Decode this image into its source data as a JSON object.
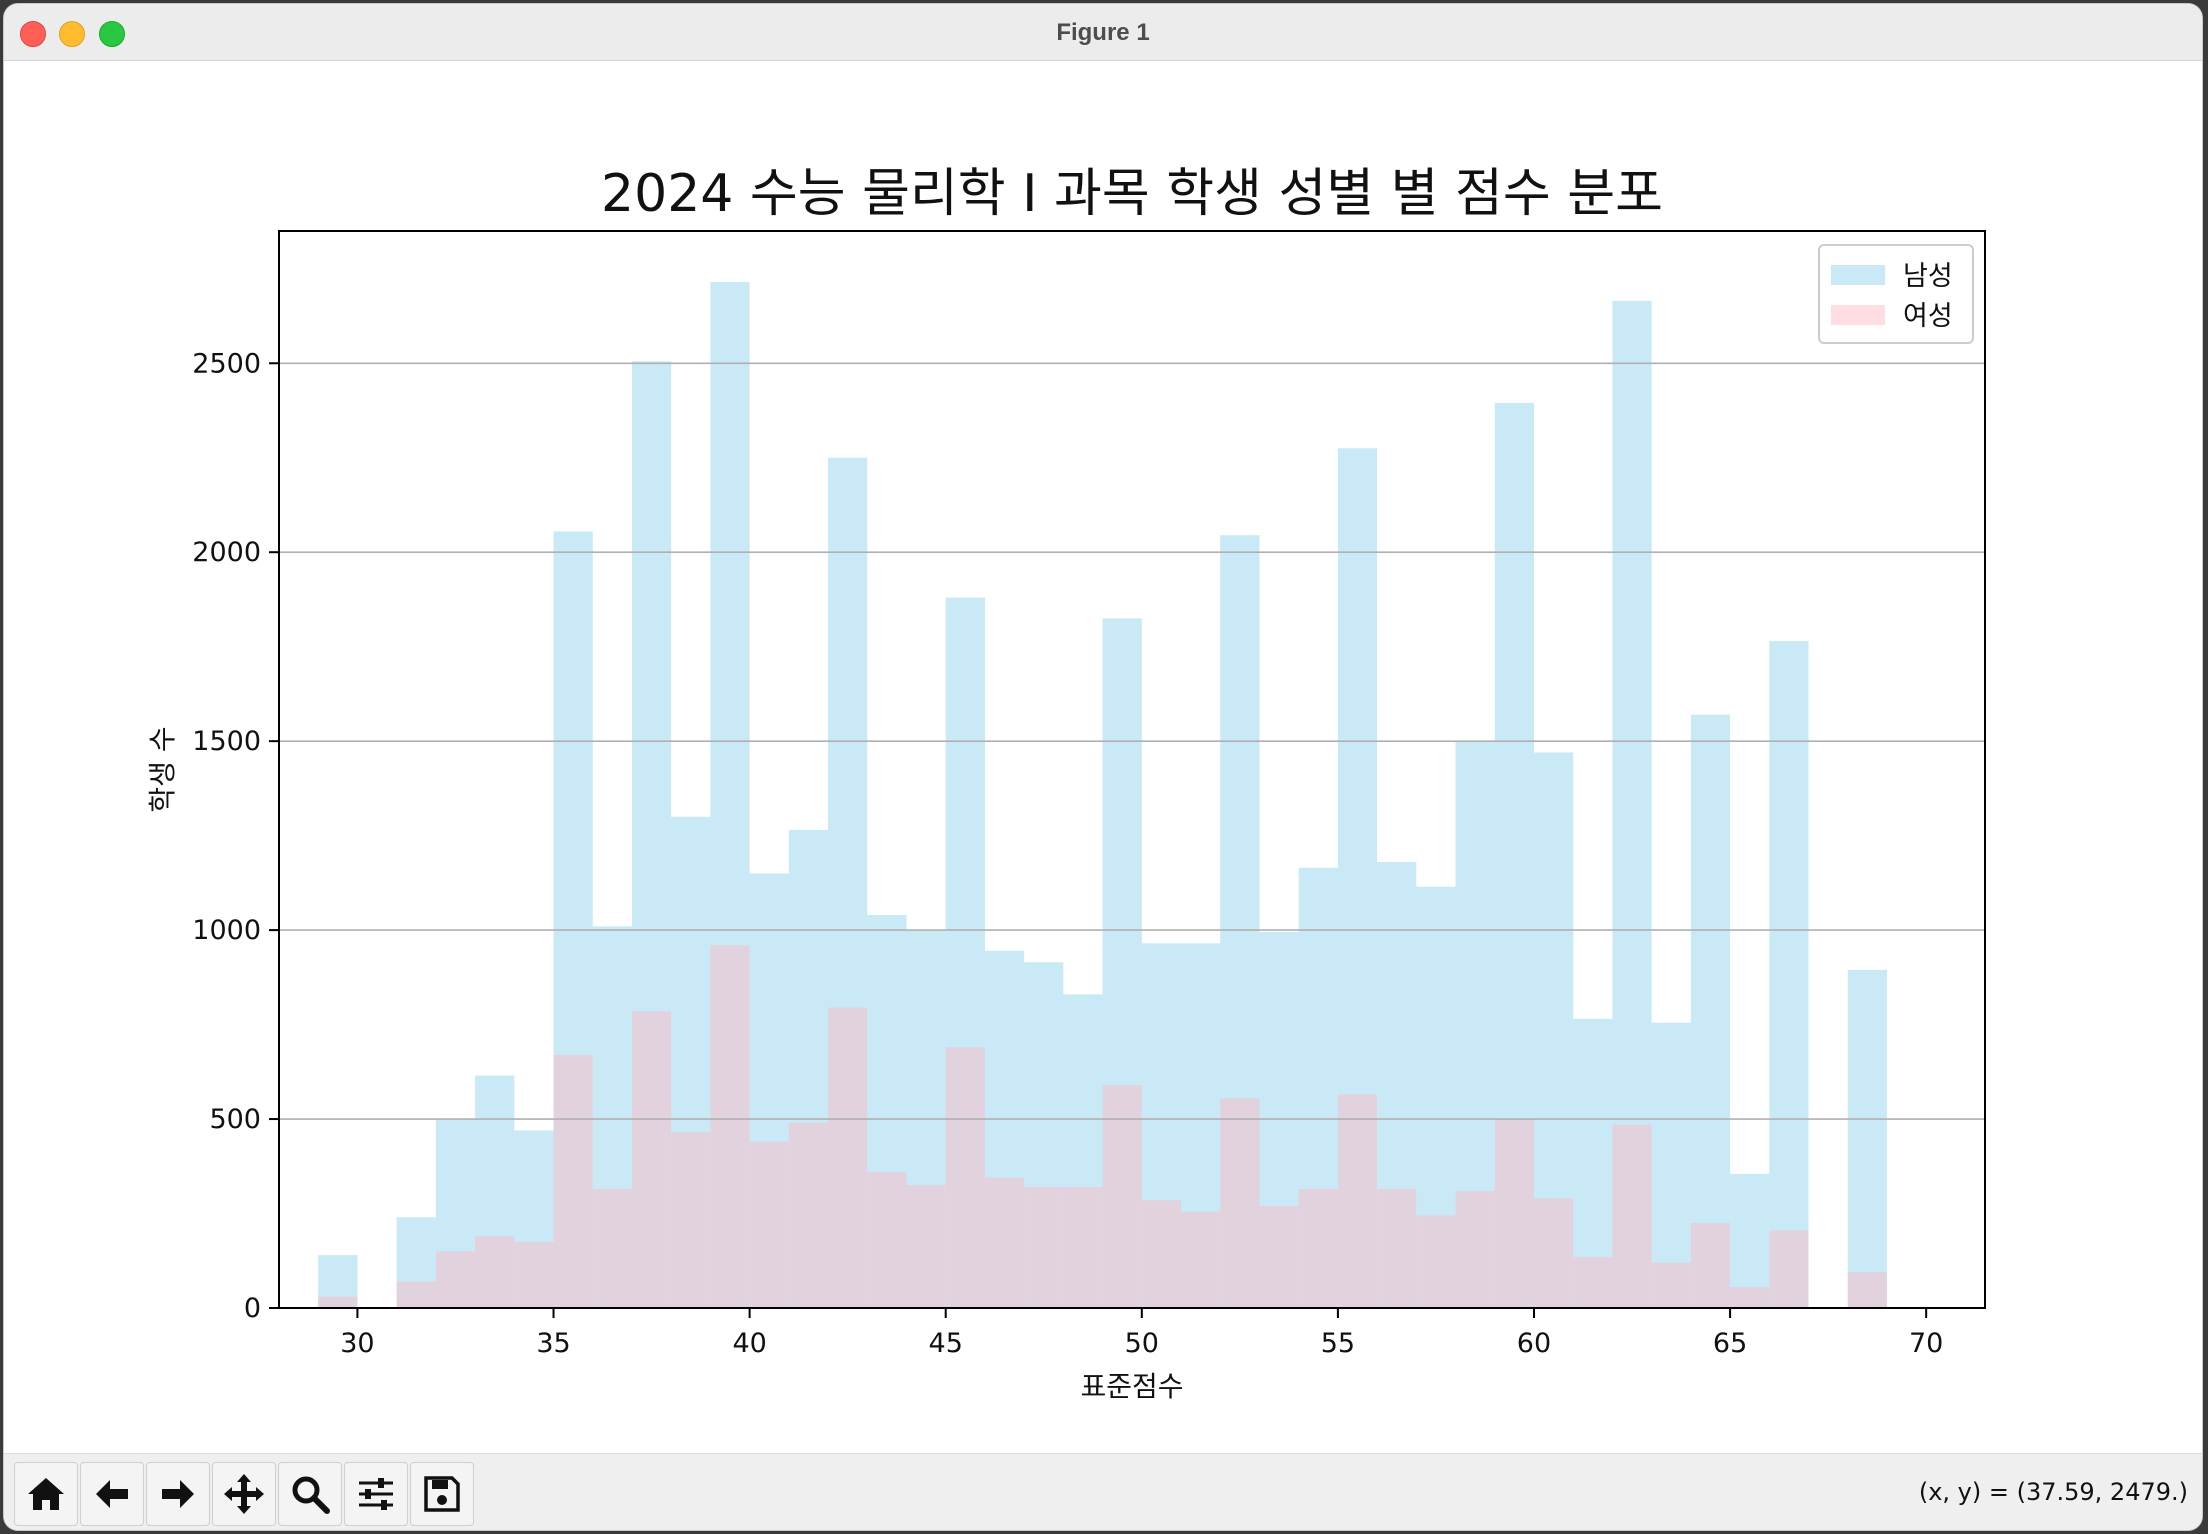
{
  "window": {
    "title": "Figure 1"
  },
  "toolbar": {
    "buttons": [
      {
        "name": "home-icon"
      },
      {
        "name": "back-arrow-icon"
      },
      {
        "name": "forward-arrow-icon"
      },
      {
        "name": "pan-icon"
      },
      {
        "name": "zoom-icon"
      },
      {
        "name": "configure-subplots-icon"
      },
      {
        "name": "save-icon"
      }
    ],
    "coords": "(x, y) = (37.59, 2479.)"
  },
  "chart_data": {
    "type": "bar",
    "title": "2024 수능 물리학 I 과목 학생 성별 별 점수 분포",
    "xlabel": "표준점수",
    "ylabel": "학생 수",
    "xlim": [
      28,
      71.5
    ],
    "ylim": [
      0,
      2850
    ],
    "xticks": [
      30,
      35,
      40,
      45,
      50,
      55,
      60,
      65,
      70
    ],
    "yticks": [
      0,
      500,
      1000,
      1500,
      2000,
      2500
    ],
    "grid": "y",
    "legend_position": "top-right",
    "bin_width": 1,
    "colors": {
      "male": "#87CEEB",
      "female": "#FFB6C1",
      "grid": "#b0b0b0"
    },
    "x": [
      29.5,
      30.5,
      31.5,
      32.5,
      33.5,
      34.5,
      35.5,
      36.5,
      37.5,
      38.5,
      39.5,
      40.5,
      41.5,
      42.5,
      43.5,
      44.5,
      45.5,
      46.5,
      47.5,
      48.5,
      49.5,
      50.5,
      51.5,
      52.5,
      53.5,
      54.5,
      55.5,
      56.5,
      57.5,
      58.5,
      59.5,
      60.5,
      61.5,
      62.5,
      63.5,
      64.5,
      65.5,
      66.5,
      67.5,
      68.5
    ],
    "series": [
      {
        "name": "남성",
        "values": [
          140,
          0,
          240,
          500,
          615,
          470,
          2055,
          1010,
          2505,
          1300,
          2715,
          1150,
          1265,
          2250,
          1040,
          1000,
          1880,
          945,
          915,
          830,
          1825,
          965,
          965,
          2045,
          995,
          1165,
          2275,
          1180,
          1115,
          1500,
          2395,
          1470,
          765,
          2665,
          755,
          1570,
          355,
          1765,
          0,
          895
        ]
      },
      {
        "name": "여성",
        "values": [
          30,
          0,
          70,
          150,
          190,
          175,
          670,
          315,
          785,
          465,
          960,
          440,
          490,
          795,
          360,
          325,
          690,
          345,
          320,
          320,
          590,
          285,
          255,
          555,
          270,
          315,
          565,
          315,
          245,
          310,
          500,
          290,
          135,
          485,
          120,
          225,
          55,
          205,
          0,
          95
        ]
      }
    ]
  }
}
